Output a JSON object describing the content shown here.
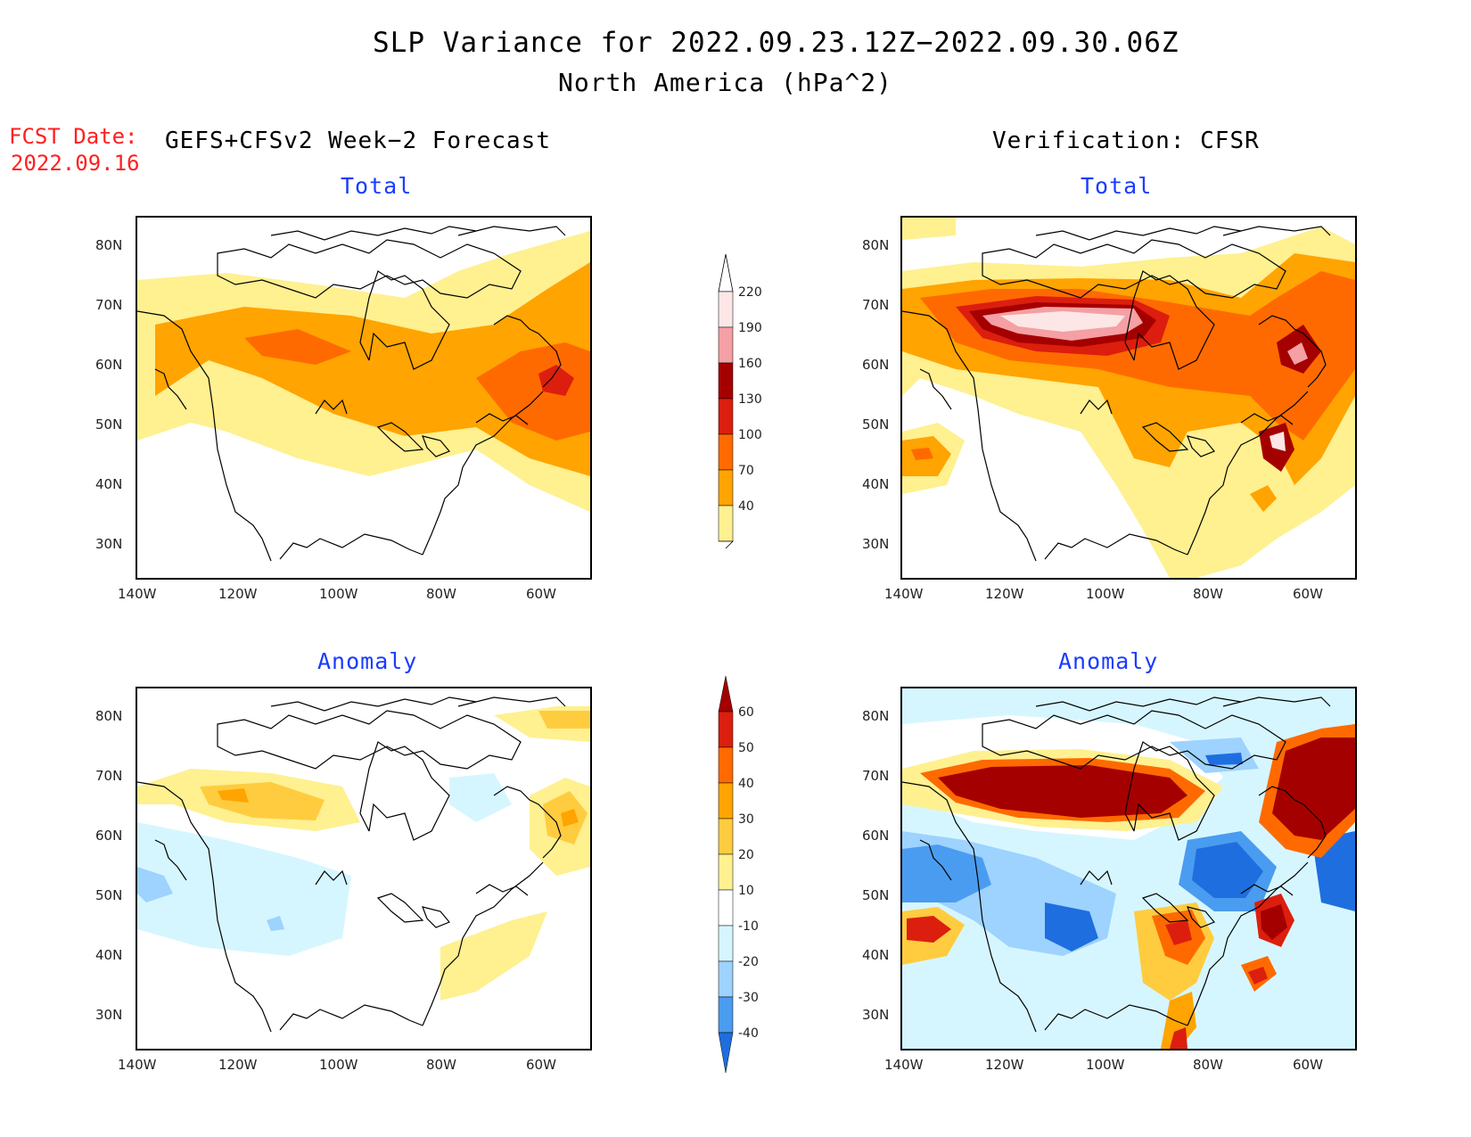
{
  "title": "SLP Variance for 2022.09.23.12Z−2022.09.30.06Z",
  "subtitle": "North America (hPa^2)",
  "fcst_label": "FCST Date:",
  "fcst_date": "2022.09.16",
  "left_header": "GEFS+CFSv2 Week−2 Forecast",
  "right_header": "Verification: CFSR",
  "panels": {
    "fcst_total": "Total",
    "fcst_anom": "Anomaly",
    "ver_total": "Total",
    "ver_anom": "Anomaly"
  },
  "axes": {
    "lat_ticks": [
      "80N",
      "70N",
      "60N",
      "50N",
      "40N",
      "30N"
    ],
    "lon_ticks": [
      "140W",
      "120W",
      "100W",
      "80W",
      "60W"
    ]
  },
  "colorbar_total": {
    "levels": [
      "220",
      "190",
      "160",
      "130",
      "100",
      "70",
      "40"
    ],
    "colors": [
      "#fde6e6",
      "#f4a0a4",
      "#a50000",
      "#dc1e0e",
      "#ff6a00",
      "#ffa400",
      "#fff090"
    ]
  },
  "colorbar_anom": {
    "levels": [
      "60",
      "50",
      "40",
      "30",
      "20",
      "10",
      "-10",
      "-20",
      "-30",
      "-40"
    ],
    "colors": [
      "#a50000",
      "#dc1e0e",
      "#ff6a00",
      "#ffa400",
      "#ffcc40",
      "#fff090",
      "#ffffff",
      "#d6f6ff",
      "#9ed2ff",
      "#4a9cf0",
      "#1e6ee0"
    ]
  }
}
